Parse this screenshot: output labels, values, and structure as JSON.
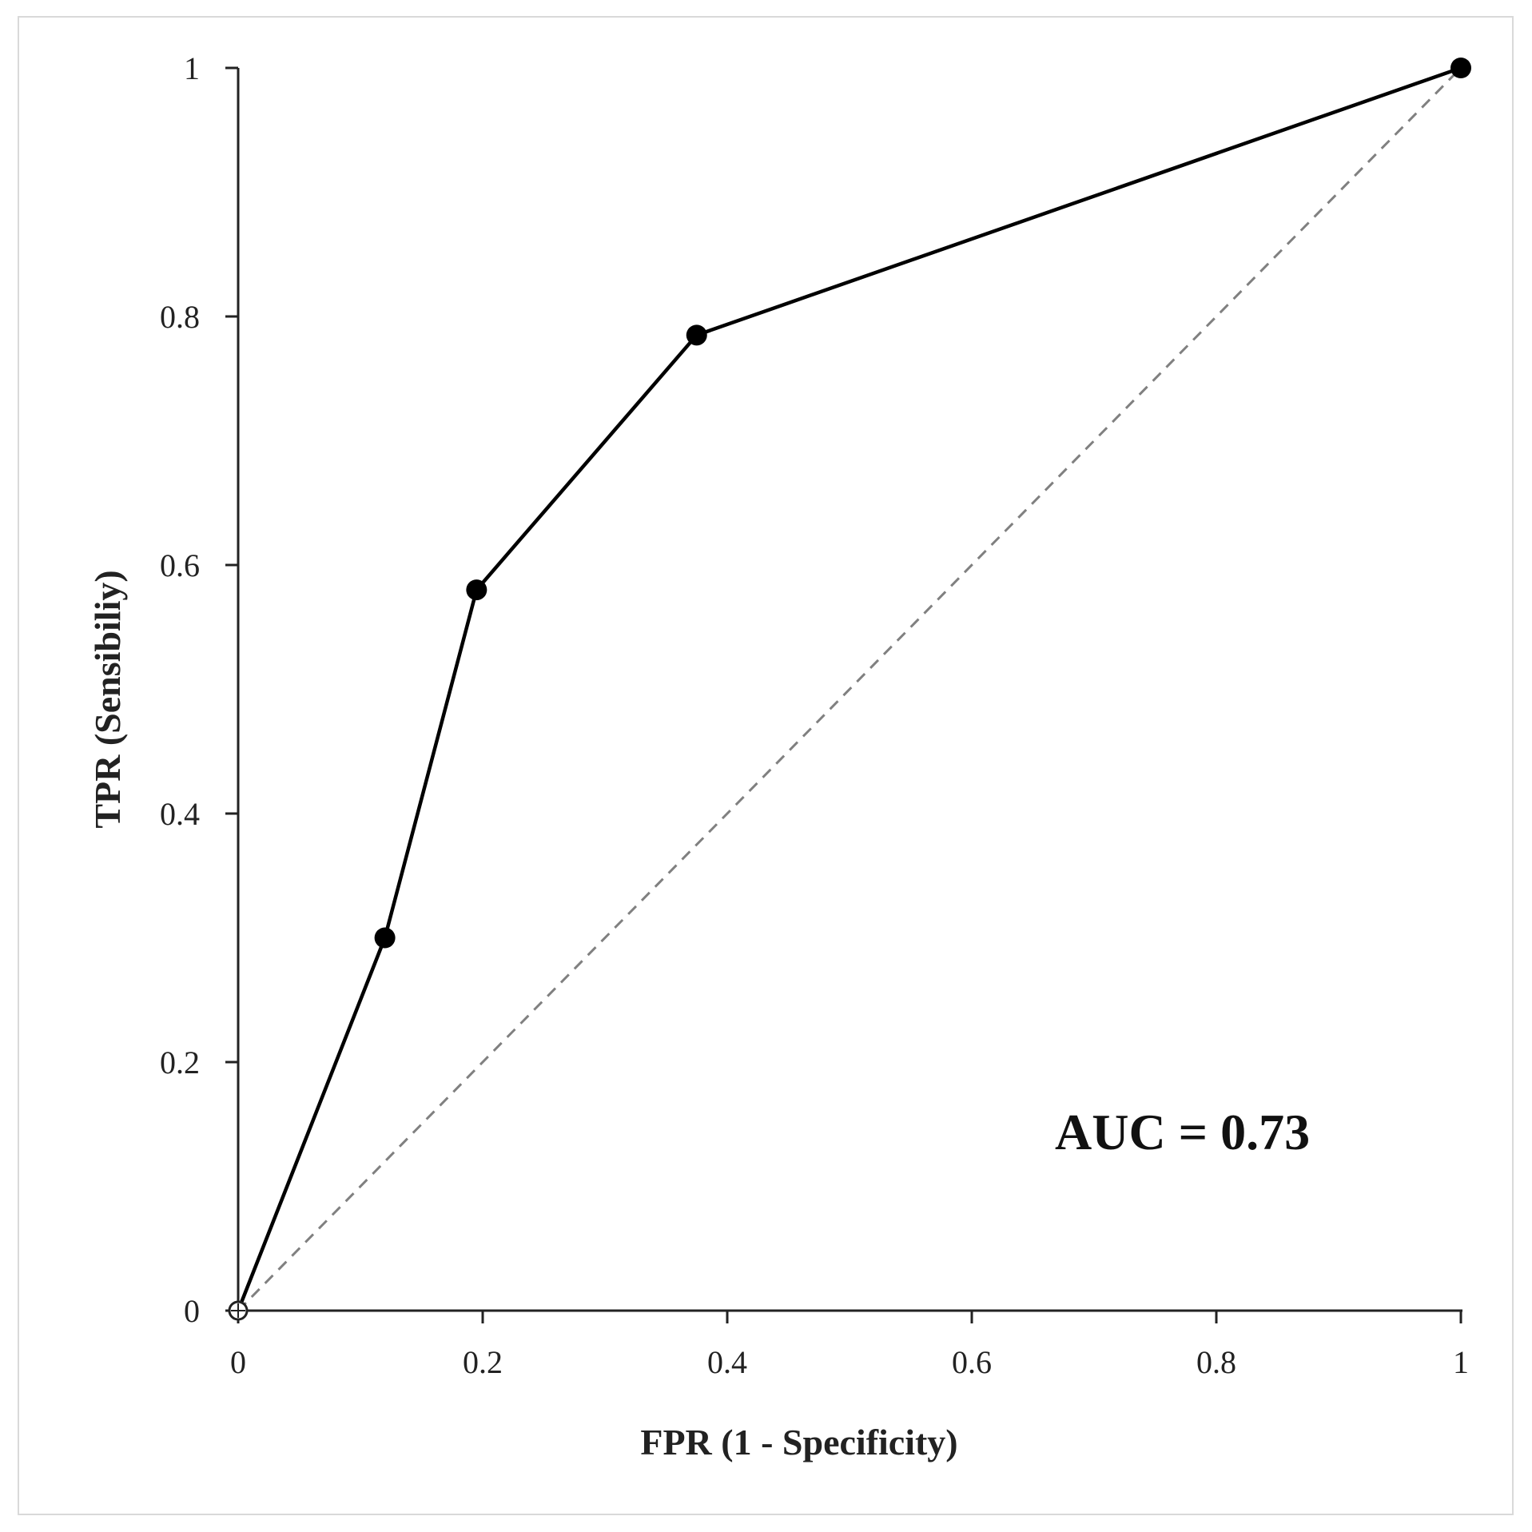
{
  "chart_data": {
    "type": "line",
    "title": "",
    "xlabel": "FPR (1 - Specificity)",
    "ylabel": "TPR (Sensibiliy)",
    "xlim": [
      0,
      1
    ],
    "ylim": [
      0,
      1
    ],
    "x_ticks": [
      "0",
      "0.2",
      "0.4",
      "0.6",
      "0.8",
      "1"
    ],
    "y_ticks": [
      "0",
      "0.2",
      "0.4",
      "0.6",
      "0.8",
      "1"
    ],
    "grid": false,
    "legend": "none",
    "series": [
      {
        "style": "solid",
        "color": "#000000",
        "markers": true,
        "points": [
          {
            "x": 0,
            "y": 0
          },
          {
            "x": 0.12,
            "y": 0.3
          },
          {
            "x": 0.195,
            "y": 0.58
          },
          {
            "x": 0.375,
            "y": 0.785
          },
          {
            "x": 1,
            "y": 1
          }
        ]
      },
      {
        "style": "dashed",
        "color": "#808080",
        "markers": false,
        "points": [
          {
            "x": 0,
            "y": 0
          },
          {
            "x": 1,
            "y": 1
          }
        ]
      }
    ],
    "annotations": [
      {
        "text": "AUC = 0.73"
      }
    ]
  }
}
